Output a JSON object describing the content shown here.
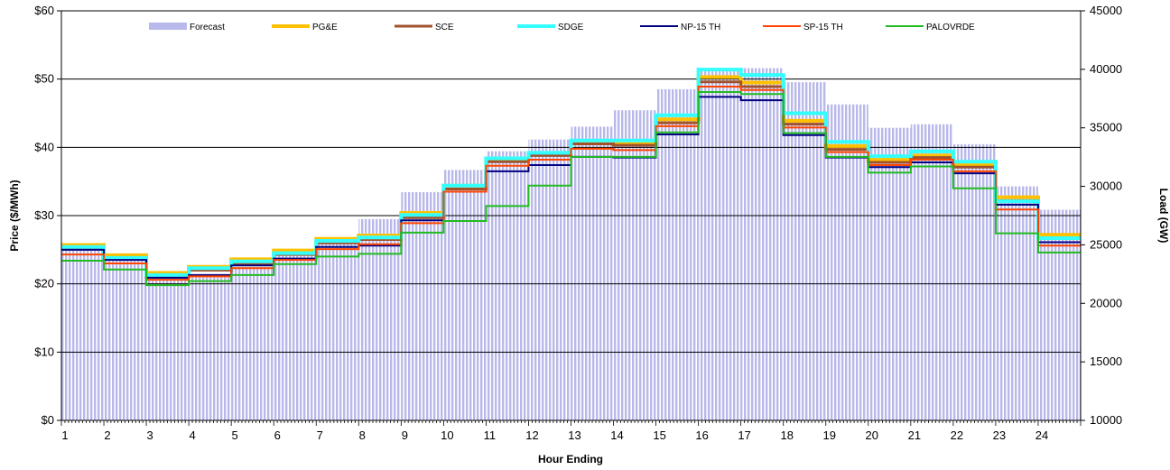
{
  "chart_data": {
    "type": "line",
    "xlabel": "Hour Ending",
    "ylabel": "Price ($/MWh)",
    "y2label": "Load (GW)",
    "x": [
      1,
      2,
      3,
      4,
      5,
      6,
      7,
      8,
      9,
      10,
      11,
      12,
      13,
      14,
      15,
      16,
      17,
      18,
      19,
      20,
      21,
      22,
      23,
      24
    ],
    "x_tick_labels": [
      "1",
      "2",
      "3",
      "4",
      "5",
      "6",
      "7",
      "8",
      "9",
      "10",
      "11",
      "12",
      "13",
      "14",
      "15",
      "16",
      "17",
      "18",
      "19",
      "20",
      "21",
      "22",
      "23",
      "24"
    ],
    "ylim": [
      0,
      60
    ],
    "y_ticks": [
      0,
      10,
      20,
      30,
      40,
      50,
      60
    ],
    "y_tick_labels": [
      "$0",
      "$10",
      "$20",
      "$30",
      "$40",
      "$50",
      "$60"
    ],
    "y2lim": [
      10000,
      45000
    ],
    "y2_ticks": [
      10000,
      15000,
      20000,
      25000,
      30000,
      35000,
      40000,
      45000
    ],
    "y2_tick_labels": [
      "10000",
      "15000",
      "20000",
      "25000",
      "30000",
      "35000",
      "40000",
      "45000"
    ],
    "grid": true,
    "legend_position": "top",
    "forecast": {
      "name": "Forecast",
      "color": "#b8b8ea",
      "values": [
        24800,
        23900,
        22100,
        22300,
        23100,
        24200,
        25600,
        27200,
        29500,
        31400,
        33000,
        34000,
        35100,
        36500,
        38300,
        40100,
        40100,
        38900,
        37000,
        35000,
        35300,
        33600,
        30000,
        28000
      ]
    },
    "series": [
      {
        "name": "PG&E",
        "color": "#ffc000",
        "width": 4,
        "values": [
          25.7,
          24.2,
          21.6,
          22.5,
          23.6,
          24.9,
          26.6,
          27.1,
          30.4,
          34.4,
          38.3,
          39.1,
          40.8,
          40.6,
          44.1,
          50.3,
          49.5,
          43.9,
          40.2,
          38.2,
          38.8,
          37.5,
          32.7,
          27.2
        ]
      },
      {
        "name": "SCE",
        "color": "#a0522d",
        "width": 3,
        "values": [
          25.1,
          23.6,
          21.0,
          22.0,
          23.0,
          24.3,
          26.0,
          26.5,
          29.7,
          33.9,
          37.9,
          38.8,
          40.5,
          40.3,
          43.6,
          49.6,
          48.9,
          43.4,
          39.7,
          37.8,
          38.5,
          37.1,
          32.2,
          26.7
        ]
      },
      {
        "name": "SDGE",
        "color": "#33ffff",
        "width": 4,
        "values": [
          25.4,
          23.8,
          21.3,
          22.3,
          23.3,
          24.5,
          26.3,
          26.8,
          30.1,
          34.4,
          38.4,
          39.2,
          41.0,
          41.0,
          44.7,
          51.4,
          50.6,
          45.0,
          40.8,
          38.7,
          39.4,
          37.9,
          32.1,
          26.7
        ]
      },
      {
        "name": "NP-15 TH",
        "color": "#000080",
        "width": 2,
        "values": [
          25.0,
          23.5,
          20.9,
          21.3,
          22.7,
          23.7,
          25.4,
          25.6,
          29.3,
          33.5,
          36.5,
          37.4,
          38.6,
          38.5,
          41.9,
          47.4,
          46.9,
          41.8,
          38.5,
          37.1,
          37.8,
          36.2,
          31.6,
          26.1
        ]
      },
      {
        "name": "SP-15 TH",
        "color": "#ff4500",
        "width": 2,
        "values": [
          24.3,
          23.0,
          20.6,
          21.1,
          22.3,
          23.5,
          25.1,
          25.8,
          28.9,
          33.5,
          37.3,
          38.2,
          39.8,
          39.6,
          43.1,
          48.9,
          48.4,
          42.9,
          39.3,
          37.4,
          38.2,
          36.5,
          30.9,
          25.6
        ]
      },
      {
        "name": "PALOVRDE",
        "color": "#22bb22",
        "width": 2,
        "values": [
          23.4,
          22.1,
          19.8,
          20.4,
          21.3,
          22.9,
          24.0,
          24.4,
          27.5,
          29.2,
          31.4,
          34.4,
          38.6,
          38.6,
          42.2,
          48.1,
          47.8,
          42.1,
          38.6,
          36.3,
          37.2,
          34.0,
          27.4,
          24.6
        ]
      }
    ]
  }
}
